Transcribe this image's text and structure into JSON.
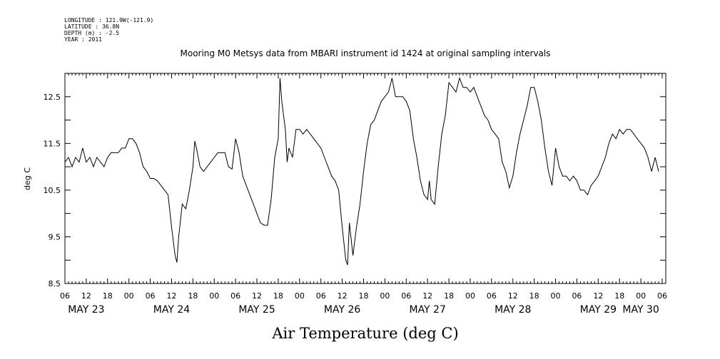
{
  "metadata": {
    "longitude": "LONGITUDE : 121.9W(-121.9)",
    "latitude": "LATITUDE : 36.8N",
    "depth": "DEPTH (m) : -2.5",
    "year": "YEAR : 2011"
  },
  "chart_data": {
    "type": "line",
    "title": "Mooring M0 Metsys data from MBARI instrument id 1424 at original sampling intervals",
    "ylabel": "deg C",
    "xlabel": "Air Temperature (deg C)",
    "ylim": [
      8.5,
      13.0
    ],
    "y_ticks": [
      "8.5",
      "9.5",
      "10.5",
      "11.5",
      "12.5"
    ],
    "xlim": [
      "2011-05-23T06:00",
      "2011-05-30T07:00"
    ],
    "x_hour_ticks": [
      "06",
      "12",
      "18",
      "00",
      "06",
      "12",
      "18",
      "00",
      "06",
      "12",
      "18",
      "00",
      "06",
      "12",
      "18",
      "00",
      "06",
      "12",
      "18",
      "00",
      "06",
      "12",
      "18",
      "00",
      "06",
      "12",
      "18",
      "00",
      "06"
    ],
    "x_day_labels": [
      {
        "label": "MAY 23",
        "time": "2011-05-23T12:00"
      },
      {
        "label": "MAY 24",
        "time": "2011-05-24T12:00"
      },
      {
        "label": "MAY 25",
        "time": "2011-05-25T12:00"
      },
      {
        "label": "MAY 26",
        "time": "2011-05-26T12:00"
      },
      {
        "label": "MAY 27",
        "time": "2011-05-27T12:00"
      },
      {
        "label": "MAY 28",
        "time": "2011-05-28T12:00"
      },
      {
        "label": "MAY 29",
        "time": "2011-05-29T12:00"
      },
      {
        "label": "MAY 30",
        "time": "2011-05-30T00:00"
      }
    ],
    "grid": false,
    "series": [
      {
        "color": "#000000",
        "points": [
          [
            "2011-05-23T06:00",
            11.1
          ],
          [
            "2011-05-23T07:00",
            11.2
          ],
          [
            "2011-05-23T08:00",
            11.0
          ],
          [
            "2011-05-23T09:00",
            11.2
          ],
          [
            "2011-05-23T10:00",
            11.1
          ],
          [
            "2011-05-23T11:00",
            11.4
          ],
          [
            "2011-05-23T12:00",
            11.1
          ],
          [
            "2011-05-23T13:00",
            11.2
          ],
          [
            "2011-05-23T14:00",
            11.0
          ],
          [
            "2011-05-23T15:00",
            11.2
          ],
          [
            "2011-05-23T16:00",
            11.1
          ],
          [
            "2011-05-23T17:00",
            11.0
          ],
          [
            "2011-05-23T18:00",
            11.2
          ],
          [
            "2011-05-23T19:00",
            11.3
          ],
          [
            "2011-05-23T20:00",
            11.3
          ],
          [
            "2011-05-23T21:00",
            11.3
          ],
          [
            "2011-05-23T22:00",
            11.4
          ],
          [
            "2011-05-23T23:00",
            11.4
          ],
          [
            "2011-05-24T00:00",
            11.6
          ],
          [
            "2011-05-24T01:00",
            11.6
          ],
          [
            "2011-05-24T02:00",
            11.5
          ],
          [
            "2011-05-24T03:00",
            11.3
          ],
          [
            "2011-05-24T04:00",
            11.0
          ],
          [
            "2011-05-24T05:00",
            10.9
          ],
          [
            "2011-05-24T06:00",
            10.75
          ],
          [
            "2011-05-24T07:00",
            10.75
          ],
          [
            "2011-05-24T08:00",
            10.7
          ],
          [
            "2011-05-24T09:00",
            10.6
          ],
          [
            "2011-05-24T10:00",
            10.5
          ],
          [
            "2011-05-24T11:00",
            10.4
          ],
          [
            "2011-05-24T12:00",
            9.7
          ],
          [
            "2011-05-24T13:00",
            9.1
          ],
          [
            "2011-05-24T13:30",
            8.95
          ],
          [
            "2011-05-24T14:00",
            9.5
          ],
          [
            "2011-05-24T15:00",
            10.2
          ],
          [
            "2011-05-24T16:00",
            10.1
          ],
          [
            "2011-05-24T17:00",
            10.5
          ],
          [
            "2011-05-24T18:00",
            11.0
          ],
          [
            "2011-05-24T18:30",
            11.55
          ],
          [
            "2011-05-24T19:00",
            11.4
          ],
          [
            "2011-05-24T20:00",
            11.0
          ],
          [
            "2011-05-24T21:00",
            10.9
          ],
          [
            "2011-05-24T22:00",
            11.0
          ],
          [
            "2011-05-24T23:00",
            11.1
          ],
          [
            "2011-05-25T00:00",
            11.2
          ],
          [
            "2011-05-25T01:00",
            11.3
          ],
          [
            "2011-05-25T02:00",
            11.3
          ],
          [
            "2011-05-25T03:00",
            11.3
          ],
          [
            "2011-05-25T04:00",
            11.0
          ],
          [
            "2011-05-25T05:00",
            10.95
          ],
          [
            "2011-05-25T06:00",
            11.6
          ],
          [
            "2011-05-25T07:00",
            11.3
          ],
          [
            "2011-05-25T08:00",
            10.8
          ],
          [
            "2011-05-25T09:00",
            10.6
          ],
          [
            "2011-05-25T10:00",
            10.4
          ],
          [
            "2011-05-25T11:00",
            10.2
          ],
          [
            "2011-05-25T12:00",
            10.0
          ],
          [
            "2011-05-25T13:00",
            9.8
          ],
          [
            "2011-05-25T14:00",
            9.75
          ],
          [
            "2011-05-25T15:00",
            9.75
          ],
          [
            "2011-05-25T16:00",
            10.3
          ],
          [
            "2011-05-25T17:00",
            11.2
          ],
          [
            "2011-05-25T18:00",
            11.6
          ],
          [
            "2011-05-25T18:30",
            12.9
          ],
          [
            "2011-05-25T19:00",
            12.4
          ],
          [
            "2011-05-25T20:00",
            11.8
          ],
          [
            "2011-05-25T20:30",
            11.1
          ],
          [
            "2011-05-25T21:00",
            11.4
          ],
          [
            "2011-05-25T22:00",
            11.2
          ],
          [
            "2011-05-25T23:00",
            11.8
          ],
          [
            "2011-05-26T00:00",
            11.8
          ],
          [
            "2011-05-26T01:00",
            11.7
          ],
          [
            "2011-05-26T02:00",
            11.8
          ],
          [
            "2011-05-26T03:00",
            11.7
          ],
          [
            "2011-05-26T04:00",
            11.6
          ],
          [
            "2011-05-26T05:00",
            11.5
          ],
          [
            "2011-05-26T06:00",
            11.4
          ],
          [
            "2011-05-26T07:00",
            11.2
          ],
          [
            "2011-05-26T08:00",
            11.0
          ],
          [
            "2011-05-26T09:00",
            10.8
          ],
          [
            "2011-05-26T10:00",
            10.7
          ],
          [
            "2011-05-26T11:00",
            10.5
          ],
          [
            "2011-05-26T12:00",
            9.7
          ],
          [
            "2011-05-26T13:00",
            9.0
          ],
          [
            "2011-05-26T13:30",
            8.9
          ],
          [
            "2011-05-26T14:00",
            9.8
          ],
          [
            "2011-05-26T15:00",
            9.1
          ],
          [
            "2011-05-26T16:00",
            9.7
          ],
          [
            "2011-05-26T17:00",
            10.2
          ],
          [
            "2011-05-26T18:00",
            10.9
          ],
          [
            "2011-05-26T19:00",
            11.5
          ],
          [
            "2011-05-26T20:00",
            11.9
          ],
          [
            "2011-05-26T21:00",
            12.0
          ],
          [
            "2011-05-26T22:00",
            12.2
          ],
          [
            "2011-05-26T23:00",
            12.4
          ],
          [
            "2011-05-27T00:00",
            12.5
          ],
          [
            "2011-05-27T01:00",
            12.6
          ],
          [
            "2011-05-27T02:00",
            12.9
          ],
          [
            "2011-05-27T03:00",
            12.5
          ],
          [
            "2011-05-27T04:00",
            12.5
          ],
          [
            "2011-05-27T05:00",
            12.5
          ],
          [
            "2011-05-27T06:00",
            12.4
          ],
          [
            "2011-05-27T07:00",
            12.2
          ],
          [
            "2011-05-27T08:00",
            11.6
          ],
          [
            "2011-05-27T09:00",
            11.2
          ],
          [
            "2011-05-27T10:00",
            10.7
          ],
          [
            "2011-05-27T11:00",
            10.4
          ],
          [
            "2011-05-27T12:00",
            10.3
          ],
          [
            "2011-05-27T12:30",
            10.7
          ],
          [
            "2011-05-27T13:00",
            10.3
          ],
          [
            "2011-05-27T14:00",
            10.2
          ],
          [
            "2011-05-27T15:00",
            11.0
          ],
          [
            "2011-05-27T16:00",
            11.7
          ],
          [
            "2011-05-27T17:00",
            12.1
          ],
          [
            "2011-05-27T18:00",
            12.8
          ],
          [
            "2011-05-27T19:00",
            12.7
          ],
          [
            "2011-05-27T20:00",
            12.6
          ],
          [
            "2011-05-27T21:00",
            12.9
          ],
          [
            "2011-05-27T22:00",
            12.7
          ],
          [
            "2011-05-27T23:00",
            12.7
          ],
          [
            "2011-05-28T00:00",
            12.6
          ],
          [
            "2011-05-28T01:00",
            12.7
          ],
          [
            "2011-05-28T02:00",
            12.5
          ],
          [
            "2011-05-28T03:00",
            12.3
          ],
          [
            "2011-05-28T04:00",
            12.1
          ],
          [
            "2011-05-28T05:00",
            12.0
          ],
          [
            "2011-05-28T06:00",
            11.8
          ],
          [
            "2011-05-28T07:00",
            11.7
          ],
          [
            "2011-05-28T08:00",
            11.6
          ],
          [
            "2011-05-28T09:00",
            11.1
          ],
          [
            "2011-05-28T10:00",
            10.9
          ],
          [
            "2011-05-28T11:00",
            10.55
          ],
          [
            "2011-05-28T12:00",
            10.8
          ],
          [
            "2011-05-28T13:00",
            11.3
          ],
          [
            "2011-05-28T14:00",
            11.7
          ],
          [
            "2011-05-28T15:00",
            12.0
          ],
          [
            "2011-05-28T16:00",
            12.3
          ],
          [
            "2011-05-28T17:00",
            12.7
          ],
          [
            "2011-05-28T18:00",
            12.7
          ],
          [
            "2011-05-28T19:00",
            12.4
          ],
          [
            "2011-05-28T20:00",
            12.0
          ],
          [
            "2011-05-28T21:00",
            11.4
          ],
          [
            "2011-05-28T22:00",
            10.9
          ],
          [
            "2011-05-28T23:00",
            10.6
          ],
          [
            "2011-05-29T00:00",
            11.4
          ],
          [
            "2011-05-29T01:00",
            11.0
          ],
          [
            "2011-05-29T02:00",
            10.8
          ],
          [
            "2011-05-29T03:00",
            10.8
          ],
          [
            "2011-05-29T04:00",
            10.7
          ],
          [
            "2011-05-29T05:00",
            10.8
          ],
          [
            "2011-05-29T06:00",
            10.7
          ],
          [
            "2011-05-29T07:00",
            10.5
          ],
          [
            "2011-05-29T08:00",
            10.5
          ],
          [
            "2011-05-29T09:00",
            10.4
          ],
          [
            "2011-05-29T10:00",
            10.6
          ],
          [
            "2011-05-29T11:00",
            10.7
          ],
          [
            "2011-05-29T12:00",
            10.8
          ],
          [
            "2011-05-29T13:00",
            11.0
          ],
          [
            "2011-05-29T14:00",
            11.2
          ],
          [
            "2011-05-29T15:00",
            11.5
          ],
          [
            "2011-05-29T16:00",
            11.7
          ],
          [
            "2011-05-29T17:00",
            11.6
          ],
          [
            "2011-05-29T18:00",
            11.8
          ],
          [
            "2011-05-29T19:00",
            11.7
          ],
          [
            "2011-05-29T20:00",
            11.8
          ],
          [
            "2011-05-29T21:00",
            11.8
          ],
          [
            "2011-05-29T22:00",
            11.7
          ],
          [
            "2011-05-29T23:00",
            11.6
          ],
          [
            "2011-05-30T00:00",
            11.5
          ],
          [
            "2011-05-30T01:00",
            11.4
          ],
          [
            "2011-05-30T02:00",
            11.2
          ],
          [
            "2011-05-30T03:00",
            10.9
          ],
          [
            "2011-05-30T04:00",
            11.2
          ],
          [
            "2011-05-30T05:00",
            10.9
          ]
        ]
      }
    ]
  }
}
